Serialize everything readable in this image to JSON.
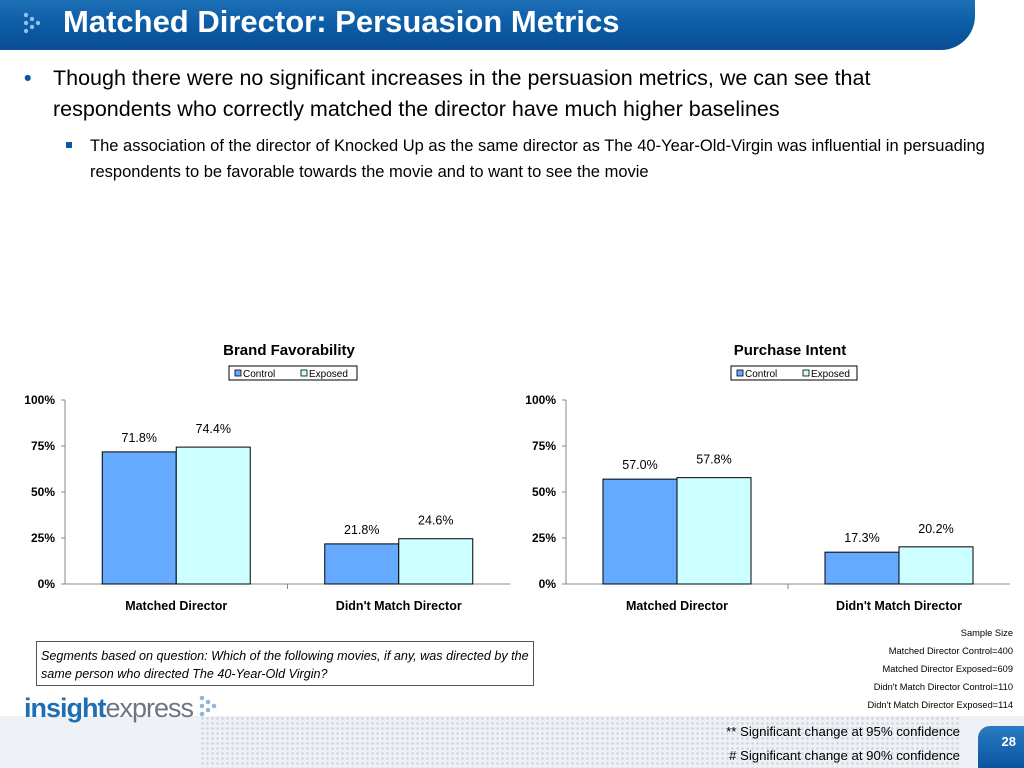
{
  "slide": {
    "title": "Matched Director: Persuasion Metrics",
    "bullet1": "Though there were no significant increases in the persuasion metrics, we can see that respondents who correctly matched the director have much higher baselines",
    "bullet2": "The association of the director of Knocked Up as the same director as The 40-Year-Old-Virgin was influential in persuading respondents to be favorable towards the movie and to want to see the movie",
    "segments_note": "Segments based on question: Which of the following movies, if any, was directed by the same person who directed The 40-Year-Old Virgin?",
    "sample_size": {
      "title": "Sample Size",
      "lines": [
        "Matched Director Control=400",
        "Matched Director Exposed=609",
        "Didn't Match Director Control=110",
        "Didn't Match Director Exposed=114"
      ]
    },
    "sig95": "** Significant change at 95% confidence",
    "sig90": "# Significant change at 90% confidence",
    "page_number": "28",
    "logo": {
      "part1": "insight",
      "part2": "express"
    },
    "colors": {
      "title_bg": "#0a5aa4",
      "control": "#66aaff",
      "exposed": "#ccffff",
      "bullet": "#0a58a3"
    }
  },
  "chart_data": [
    {
      "type": "bar",
      "title": "Brand Favorability",
      "categories": [
        "Matched Director",
        "Didn't Match Director"
      ],
      "series": [
        {
          "name": "Control",
          "values": [
            71.8,
            21.8
          ],
          "labels": [
            "71.8%",
            "21.8%"
          ]
        },
        {
          "name": "Exposed",
          "values": [
            74.4,
            24.6
          ],
          "labels": [
            "74.4%",
            "24.6%"
          ]
        }
      ],
      "ylim": [
        0,
        100
      ],
      "yticks": [
        "0%",
        "25%",
        "50%",
        "75%",
        "100%"
      ],
      "legend": "top",
      "grid": false
    },
    {
      "type": "bar",
      "title": "Purchase Intent",
      "categories": [
        "Matched Director",
        "Didn't Match Director"
      ],
      "series": [
        {
          "name": "Control",
          "values": [
            57.0,
            17.3
          ],
          "labels": [
            "57.0%",
            "17.3%"
          ]
        },
        {
          "name": "Exposed",
          "values": [
            57.8,
            20.2
          ],
          "labels": [
            "57.8%",
            "20.2%"
          ]
        }
      ],
      "ylim": [
        0,
        100
      ],
      "yticks": [
        "0%",
        "25%",
        "50%",
        "75%",
        "100%"
      ],
      "legend": "top-right",
      "grid": false
    }
  ]
}
